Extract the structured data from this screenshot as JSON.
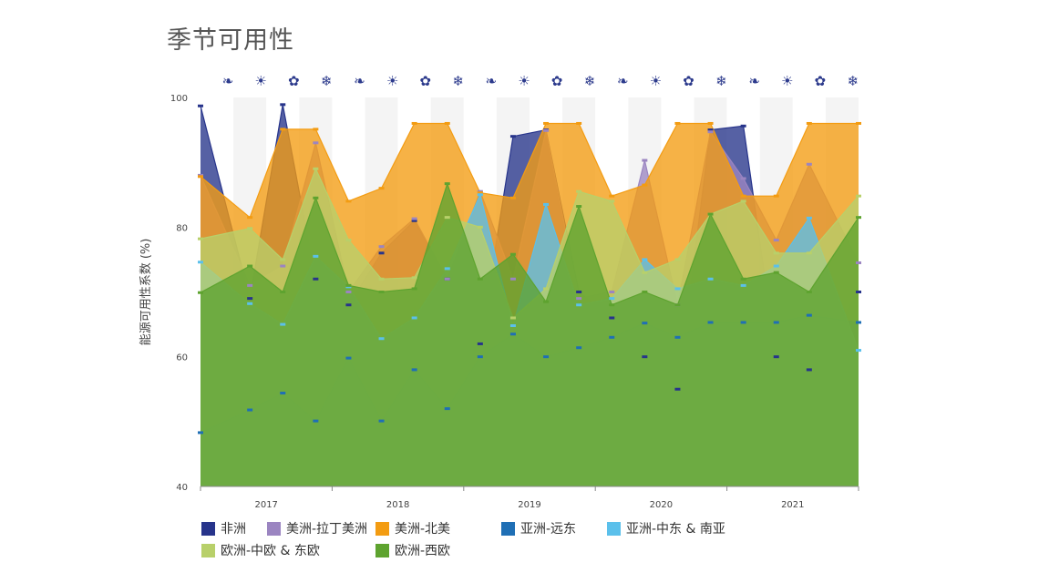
{
  "title": "季节可用性",
  "chart_data": {
    "type": "area",
    "ylabel": "能源可用性系数 (%)",
    "ylim": [
      40,
      100
    ],
    "yticks": [
      40,
      60,
      80,
      100
    ],
    "year_labels": [
      "2017",
      "2018",
      "2019",
      "2020",
      "2021"
    ],
    "season_icons": [
      "leaf-icon",
      "sun-icon",
      "flower-icon",
      "snowflake-icon",
      "leaf-icon",
      "sun-icon",
      "flower-icon",
      "snowflake-icon",
      "leaf-icon",
      "sun-icon",
      "flower-icon",
      "snowflake-icon",
      "leaf-icon",
      "sun-icon",
      "flower-icon",
      "snowflake-icon",
      "leaf-icon",
      "sun-icon",
      "flower-icon",
      "snowflake-icon"
    ],
    "series": [
      {
        "name": "非洲",
        "color": "#27348b",
        "values": [
          98.7,
          69,
          98.9,
          72,
          68,
          76,
          81,
          72,
          62,
          94,
          95,
          70,
          66,
          60,
          55,
          95,
          95.6,
          60,
          58,
          70
        ]
      },
      {
        "name": "美洲-拉丁美洲",
        "color": "#9b85c1",
        "values": [
          88,
          71,
          74,
          93,
          70,
          77,
          81.3,
          72,
          85.5,
          72,
          94.9,
          69,
          70,
          90.3,
          68,
          94.7,
          87.5,
          78,
          89.7,
          74.5
        ]
      },
      {
        "name": "美洲-北美",
        "color": "#f39c12",
        "values": [
          87.8,
          81.5,
          95.1,
          95.1,
          84,
          86,
          96,
          96,
          85.3,
          84.5,
          96,
          96,
          84.8,
          86.5,
          96,
          96,
          84.8,
          84.8,
          96,
          96
        ]
      },
      {
        "name": "亚洲-远东",
        "color": "#1f6fb5",
        "values": [
          48.3,
          51.8,
          54.4,
          50.1,
          59.8,
          50.1,
          58,
          52,
          60,
          63.5,
          60,
          61.4,
          63,
          65.2,
          63,
          65.3,
          65.3,
          65.3,
          66.4,
          65.3
        ]
      },
      {
        "name": "亚洲-中东 & 南亚",
        "color": "#5bc0eb",
        "values": [
          74.6,
          68.2,
          65,
          75.5,
          70.8,
          62.8,
          66,
          73.6,
          85,
          64.8,
          83.5,
          68,
          69,
          75,
          70.5,
          72,
          71,
          74,
          81.4,
          61
        ]
      },
      {
        "name": "欧洲-中欧 & 东欧",
        "color": "#b8d06a",
        "values": [
          78.2,
          79.8,
          75,
          89,
          78,
          72,
          72.2,
          81.5,
          80,
          66,
          70.5,
          85.5,
          84,
          73,
          75,
          82,
          84,
          76,
          76,
          84.8
        ]
      },
      {
        "name": "欧洲-西欧",
        "color": "#5ea32f",
        "values": [
          69.9,
          74,
          70,
          84.5,
          71,
          70,
          70.5,
          86.7,
          72,
          75.8,
          68.5,
          83.2,
          68,
          70,
          68,
          82,
          72,
          73,
          70,
          81.5
        ]
      }
    ],
    "legend_position": "bottom",
    "grid": false
  }
}
